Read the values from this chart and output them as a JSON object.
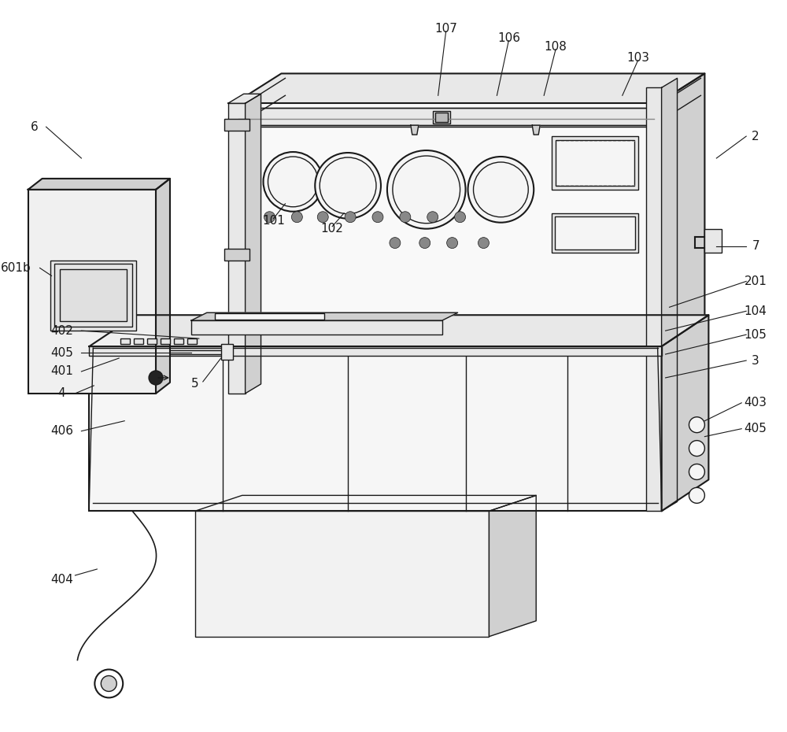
{
  "bg_color": "#ffffff",
  "lc": "#1a1a1a",
  "lw": 1.0,
  "lw2": 1.5,
  "lw3": 2.0,
  "gray_light": "#f5f5f5",
  "gray_mid": "#e8e8e8",
  "gray_dark": "#d0d0d0",
  "gray_panel": "#f8f8f8"
}
